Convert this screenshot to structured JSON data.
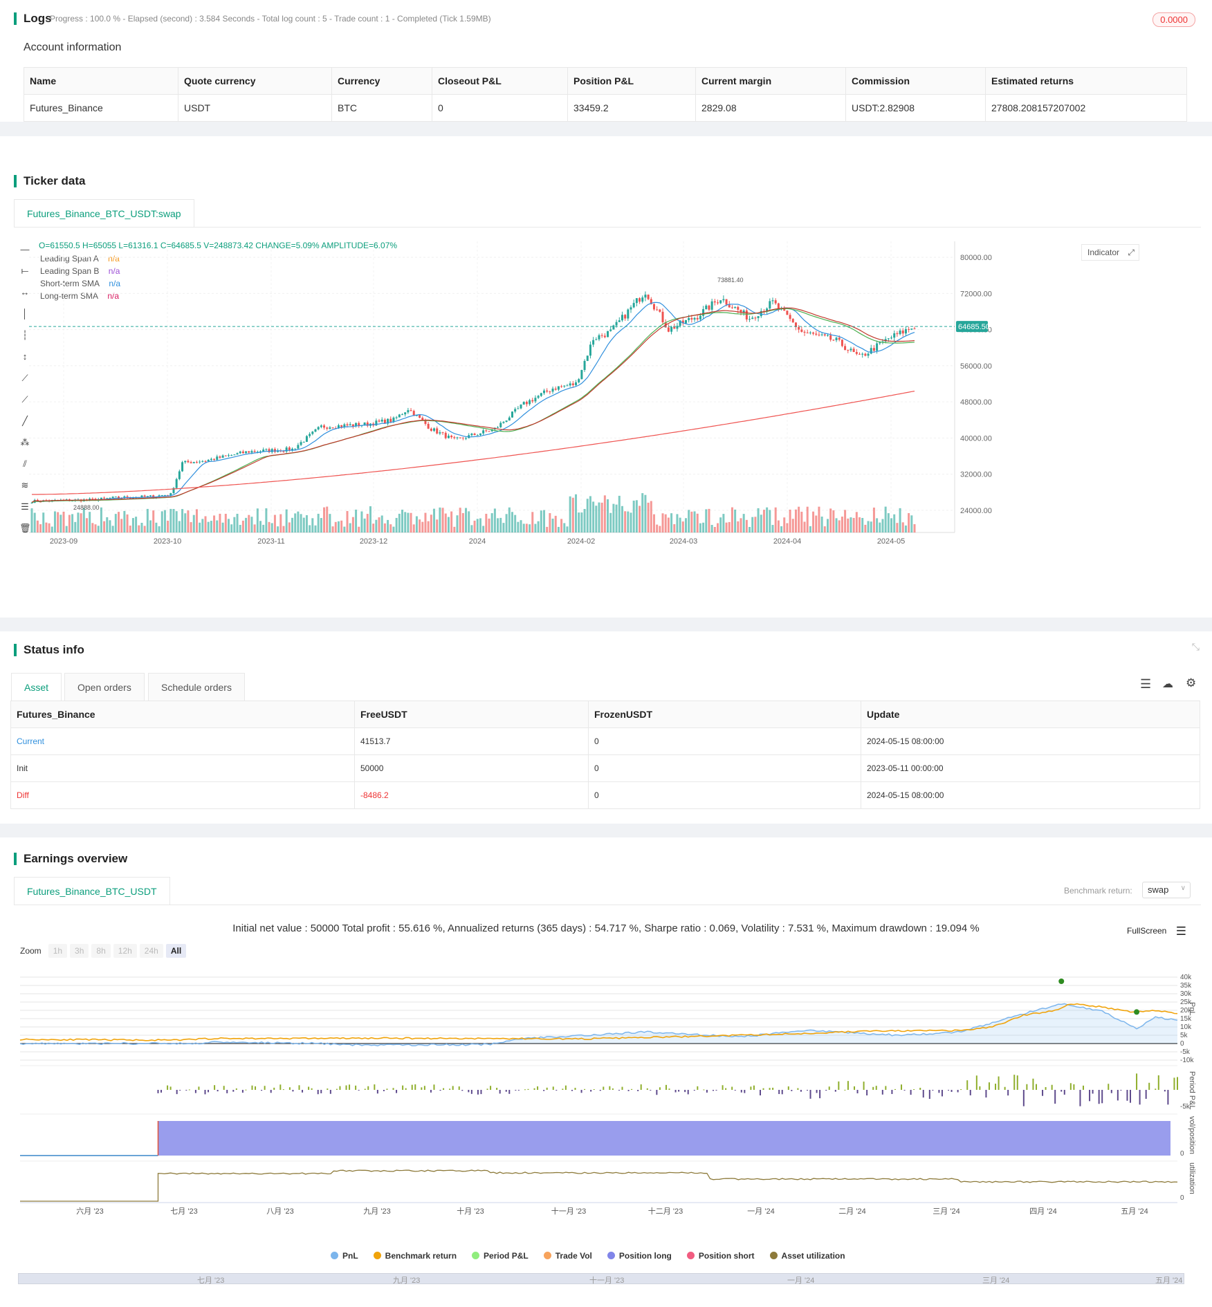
{
  "logs": {
    "title": "Logs",
    "status_line": "Progress : 100.0 % - Elapsed (second) : 3.584  Seconds - Total log count : 5 - Trade count : 1 - Completed (Tick 1.59MB)",
    "badge": "0.0000",
    "account_title": "Account information",
    "columns": [
      "Name",
      "Quote currency",
      "Currency",
      "Closeout P&L",
      "Position P&L",
      "Current margin",
      "Commission",
      "Estimated returns"
    ],
    "row": [
      "Futures_Binance",
      "USDT",
      "BTC",
      "0",
      "33459.2",
      "2829.08",
      "USDT:2.82908",
      "27808.208157207002"
    ]
  },
  "ticker": {
    "title": "Ticker data",
    "tab": "Futures_Binance_BTC_USDT:swap",
    "ohlc": "O=61550.5 H=65055 L=61316.1 C=64685.5 V=248873.42 CHANGE=5.09% AMPLITUDE=6.07%",
    "indicators": [
      {
        "name": "Leading Span A",
        "value": "n/a",
        "color": "#f59a23"
      },
      {
        "name": "Leading Span B",
        "value": "n/a",
        "color": "#9c4fd6"
      },
      {
        "name": "Short-term SMA",
        "value": "n/a",
        "color": "#2f8fdd"
      },
      {
        "name": "Long-term SMA",
        "value": "n/a",
        "color": "#d81b60"
      }
    ],
    "indicator_button": "Indicator",
    "high_label": "73881.40",
    "low_label": "24888.00",
    "last_price": "64685.50",
    "y_ticks": [
      "80000.00",
      "72000.00",
      "64000.00",
      "56000.00",
      "48000.00",
      "40000.00",
      "32000.00",
      "24000.00"
    ],
    "x_ticks": [
      "2023-09",
      "2023-10",
      "2023-11",
      "2023-12",
      "2024",
      "2024-02",
      "2024-03",
      "2024-04",
      "2024-05"
    ]
  },
  "status": {
    "title": "Status info",
    "tabs": [
      "Asset",
      "Open orders",
      "Schedule orders"
    ],
    "columns": [
      "Futures_Binance",
      "FreeUSDT",
      "FrozenUSDT",
      "Update"
    ],
    "rows": [
      [
        "Current",
        "41513.7",
        "0",
        "2024-05-15 08:00:00"
      ],
      [
        "Init",
        "50000",
        "0",
        "2023-05-11 00:00:00"
      ],
      [
        "Diff",
        "-8486.2",
        "0",
        "2024-05-15 08:00:00"
      ]
    ]
  },
  "earnings": {
    "title": "Earnings overview",
    "tab": "Futures_Binance_BTC_USDT",
    "benchmark_label": "Benchmark return:",
    "benchmark_value": "swap",
    "summary": "Initial net value : 50000 Total profit : 55.616 %, Annualized returns (365 days) : 54.717 %, Sharpe ratio : 0.069, Volatility : 7.531 %, Maximum drawdown : 19.094 %",
    "fullscreen": "FullScreen",
    "zoom_label": "Zoom",
    "zoom_buttons": [
      "1h",
      "3h",
      "8h",
      "12h",
      "24h",
      "All"
    ],
    "pnl_ticks": [
      "40k",
      "35k",
      "30k",
      "25k",
      "20k",
      "15k",
      "10k",
      "5k",
      "0",
      "-5k",
      "-10k"
    ],
    "axis_labels": [
      "PnL",
      "Period P&L",
      "vol/position",
      "utilization"
    ],
    "period_tick": "-5k",
    "pos_tick": "0",
    "util_tick": "0",
    "x_ticks": [
      "六月 '23",
      "七月 '23",
      "八月 '23",
      "九月 '23",
      "十月 '23",
      "十一月 '23",
      "十二月 '23",
      "一月 '24",
      "二月 '24",
      "三月 '24",
      "四月 '24",
      "五月 '24"
    ],
    "nav_ticks": [
      "七月 '23",
      "九月 '23",
      "十一月 '23",
      "一月 '24",
      "三月 '24",
      "五月 '24"
    ],
    "legend": [
      {
        "name": "PnL",
        "color": "#7cb5ec"
      },
      {
        "name": "Benchmark return",
        "color": "#f0a30a"
      },
      {
        "name": "Period P&L",
        "color": "#90ed7d"
      },
      {
        "name": "Trade Vol",
        "color": "#f7a35c"
      },
      {
        "name": "Position long",
        "color": "#8085e9"
      },
      {
        "name": "Position short",
        "color": "#f15c80"
      },
      {
        "name": "Asset utilization",
        "color": "#8d7a3a"
      }
    ]
  }
}
